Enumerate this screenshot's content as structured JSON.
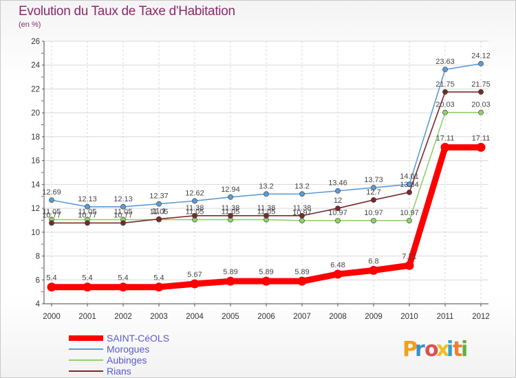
{
  "chart_data": {
    "type": "line",
    "title": "Evolution du Taux de Taxe d'Habitation",
    "subtitle": "(en %)",
    "x": [
      "2000",
      "2001",
      "2002",
      "2003",
      "2004",
      "2005",
      "2006",
      "2007",
      "2008",
      "2009",
      "2010",
      "2011",
      "2012"
    ],
    "ylim": [
      4,
      26
    ],
    "yticks": [
      4,
      6,
      8,
      10,
      12,
      14,
      16,
      18,
      20,
      22,
      24,
      26
    ],
    "grid": true,
    "legend_position": "bottom-left",
    "series": [
      {
        "name": "SAINT-CéOLS",
        "color": "#ff0000",
        "values": [
          5.4,
          5.4,
          5.4,
          5.4,
          5.67,
          5.89,
          5.89,
          5.89,
          6.48,
          6.8,
          7.21,
          17.11,
          17.11
        ],
        "labels": [
          "5.4",
          "5.4",
          "5.4",
          "5.4",
          "5.67",
          "5.89",
          "5.89",
          "5.89",
          "6.48",
          "6.8",
          "7.21",
          "17.11",
          "17.11"
        ]
      },
      {
        "name": "Morogues",
        "color": "#5b9bd5",
        "values": [
          12.69,
          12.13,
          12.13,
          12.37,
          12.62,
          12.94,
          13.2,
          13.2,
          13.46,
          13.73,
          14.01,
          23.63,
          24.12
        ],
        "labels": [
          "12.69",
          "12.13",
          "12.13",
          "12.37",
          "12.62",
          "12.94",
          "13.2",
          "13.2",
          "13.46",
          "13.73",
          "14.01",
          "23.63",
          "24.12"
        ]
      },
      {
        "name": "Aubinges",
        "color": "#8fd06a",
        "values": [
          11.05,
          11.05,
          11.05,
          11.05,
          11.05,
          11.05,
          11.05,
          10.97,
          10.97,
          10.97,
          10.97,
          20.03,
          20.03
        ],
        "labels": [
          "11.05",
          "11.05",
          "11.05",
          "11.05",
          "11.05",
          "11.05",
          "11.05",
          "10.97",
          "10.97",
          "10.97",
          "10.97",
          "20.03",
          "20.03"
        ]
      },
      {
        "name": "Rians",
        "color": "#7a2a2a",
        "values": [
          10.77,
          10.77,
          10.77,
          11.1,
          11.38,
          11.38,
          11.38,
          11.38,
          12.0,
          12.7,
          13.34,
          21.75,
          21.75
        ],
        "labels": [
          "10.77",
          "10.77",
          "10.77",
          "11.1",
          "11.38",
          "11.38",
          "11.38",
          "11.38",
          "12",
          "12.7",
          "13.34",
          "21.75",
          "21.75"
        ]
      }
    ]
  },
  "logo": {
    "text": "Proxiti"
  }
}
